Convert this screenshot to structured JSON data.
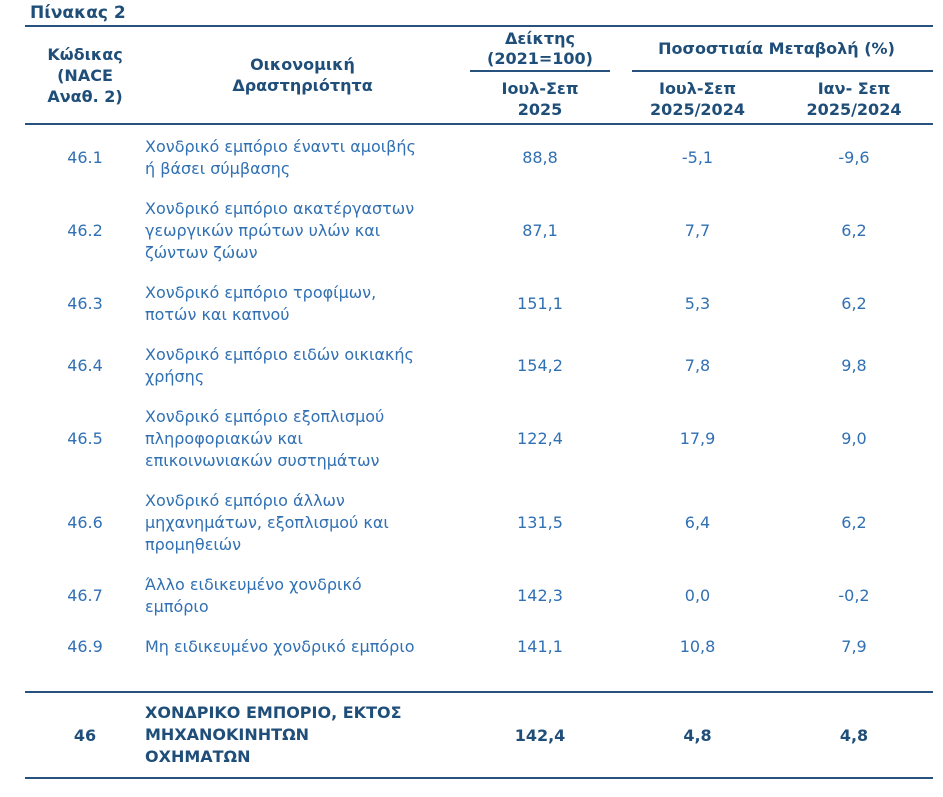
{
  "title": "Πίνακας 2",
  "colors": {
    "header_text": "#1F4E79",
    "body_text": "#3070B3",
    "line": "#27527E"
  },
  "table": {
    "header": {
      "code": "Κώδικας\n(NACE\nΑναθ. 2)",
      "activity": "Οικονομική\nΔραστηριότητα",
      "index_group": "Δείκτης\n(2021=100)",
      "index_period": "Ιουλ-Σεπ\n2025",
      "pct_group": "Ποσοστιαία Μεταβολή (%)",
      "pct_period_1": "Ιουλ-Σεπ\n2025/2024",
      "pct_period_2": "Ιαν- Σεπ\n2025/2024"
    },
    "rows": [
      {
        "code": "46.1",
        "activity": "Χονδρικό εμπόριο έναντι αμοιβής\nή βάσει σύμβασης",
        "index": "88,8",
        "pct1": "-5,1",
        "pct2": "-9,6"
      },
      {
        "code": "46.2",
        "activity": "Χονδρικό εμπόριο ακατέργαστων\nγεωργικών πρώτων υλών και\nζώντων ζώων",
        "index": "87,1",
        "pct1": "7,7",
        "pct2": "6,2"
      },
      {
        "code": "46.3",
        "activity": "Χονδρικό εμπόριο τροφίμων,\nποτών και καπνού",
        "index": "151,1",
        "pct1": "5,3",
        "pct2": "6,2"
      },
      {
        "code": "46.4",
        "activity": "Χονδρικό εμπόριο ειδών οικιακής\nχρήσης",
        "index": "154,2",
        "pct1": "7,8",
        "pct2": "9,8"
      },
      {
        "code": "46.5",
        "activity": "Χονδρικό εμπόριο εξοπλισμού\nπληροφοριακών και\nεπικοινωνιακών συστημάτων",
        "index": "122,4",
        "pct1": "17,9",
        "pct2": "9,0"
      },
      {
        "code": "46.6",
        "activity": "Χονδρικό εμπόριο άλλων\nμηχανημάτων, εξοπλισμού και\nπρομηθειών",
        "index": "131,5",
        "pct1": "6,4",
        "pct2": "6,2"
      },
      {
        "code": "46.7",
        "activity": "Άλλο ειδικευμένο χονδρικό\nεμπόριο",
        "index": "142,3",
        "pct1": "0,0",
        "pct2": "-0,2"
      },
      {
        "code": "46.9",
        "activity": "Μη ειδικευμένο χονδρικό εμπόριο",
        "index": "141,1",
        "pct1": "10,8",
        "pct2": "7,9"
      }
    ],
    "total": {
      "code": "46",
      "activity": "ΧΟΝΔΡΙΚΟ ΕΜΠΟΡΙΟ, ΕΚΤΟΣ\nΜΗΧΑΝΟΚΙΝΗΤΩΝ\nΟΧΗΜΑΤΩΝ",
      "index": "142,4",
      "pct1": "4,8",
      "pct2": "4,8"
    }
  }
}
